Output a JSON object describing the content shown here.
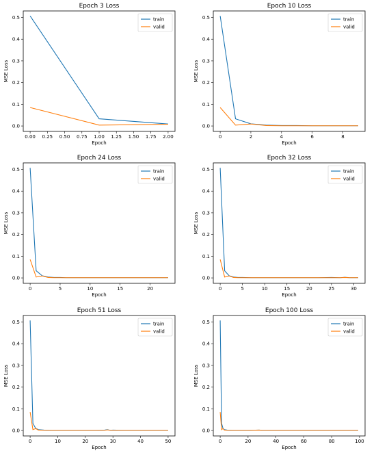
{
  "colors": {
    "train": "#1f77b4",
    "valid": "#ff7f0e"
  },
  "chart_data": [
    {
      "type": "line",
      "title": "Epoch 3 Loss",
      "xlabel": "Epoch",
      "ylabel": "MSE Loss",
      "xlim": [
        -0.1,
        2.1
      ],
      "ylim": [
        -0.025,
        0.53
      ],
      "xticks": [
        0.0,
        0.25,
        0.5,
        0.75,
        1.0,
        1.25,
        1.5,
        1.75,
        2.0
      ],
      "xtick_labels": [
        "0.00",
        "0.25",
        "0.50",
        "0.75",
        "1.00",
        "1.25",
        "1.50",
        "1.75",
        "2.00"
      ],
      "yticks": [
        0.0,
        0.1,
        0.2,
        0.3,
        0.4,
        0.5
      ],
      "ytick_labels": [
        "0.0",
        "0.1",
        "0.2",
        "0.3",
        "0.4",
        "0.5"
      ],
      "legend": "top-right",
      "grid": false,
      "series": [
        {
          "name": "train",
          "x": [
            0,
            1,
            2
          ],
          "y": [
            0.507,
            0.033,
            0.009
          ]
        },
        {
          "name": "valid",
          "x": [
            0,
            1,
            2
          ],
          "y": [
            0.085,
            0.004,
            0.008
          ]
        }
      ]
    },
    {
      "type": "line",
      "title": "Epoch 10 Loss",
      "xlabel": "Epoch",
      "ylabel": "MSE Loss",
      "xlim": [
        -0.45,
        9.45
      ],
      "ylim": [
        -0.025,
        0.53
      ],
      "xticks": [
        0,
        2,
        4,
        6,
        8
      ],
      "xtick_labels": [
        "0",
        "2",
        "4",
        "6",
        "8"
      ],
      "yticks": [
        0.0,
        0.1,
        0.2,
        0.3,
        0.4,
        0.5
      ],
      "ytick_labels": [
        "0.0",
        "0.1",
        "0.2",
        "0.3",
        "0.4",
        "0.5"
      ],
      "legend": "top-right",
      "grid": false,
      "series": [
        {
          "name": "train",
          "x": [
            0,
            1,
            2,
            3,
            4,
            5,
            6,
            7,
            8,
            9
          ],
          "y": [
            0.507,
            0.033,
            0.01,
            0.004,
            0.002,
            0.002,
            0.001,
            0.001,
            0.001,
            0.001
          ]
        },
        {
          "name": "valid",
          "x": [
            0,
            1,
            2,
            3,
            4,
            5,
            6,
            7,
            8,
            9
          ],
          "y": [
            0.085,
            0.004,
            0.009,
            0.002,
            0.001,
            0.001,
            0.001,
            0.001,
            0.001,
            0.001
          ]
        }
      ]
    },
    {
      "type": "line",
      "title": "Epoch 24 Loss",
      "xlabel": "Epoch",
      "ylabel": "MSE Loss",
      "xlim": [
        -1.15,
        24.15
      ],
      "ylim": [
        -0.025,
        0.53
      ],
      "xticks": [
        0,
        5,
        10,
        15,
        20
      ],
      "xtick_labels": [
        "0",
        "5",
        "10",
        "15",
        "20"
      ],
      "yticks": [
        0.0,
        0.1,
        0.2,
        0.3,
        0.4,
        0.5
      ],
      "ytick_labels": [
        "0.0",
        "0.1",
        "0.2",
        "0.3",
        "0.4",
        "0.5"
      ],
      "legend": "top-right",
      "grid": false,
      "series": [
        {
          "name": "train",
          "x": [
            0,
            1,
            2,
            3,
            4,
            5,
            6,
            8,
            10,
            12,
            14,
            16,
            18,
            20,
            22,
            23
          ],
          "y": [
            0.507,
            0.033,
            0.01,
            0.004,
            0.002,
            0.002,
            0.001,
            0.001,
            0.001,
            0.001,
            0.001,
            0.001,
            0.001,
            0.001,
            0.001,
            0.001
          ]
        },
        {
          "name": "valid",
          "x": [
            0,
            1,
            2,
            3,
            4,
            5,
            6,
            8,
            10,
            12,
            14,
            16,
            18,
            20,
            22,
            23
          ],
          "y": [
            0.085,
            0.004,
            0.009,
            0.002,
            0.001,
            0.001,
            0.001,
            0.001,
            0.001,
            0.001,
            0.001,
            0.001,
            0.001,
            0.001,
            0.001,
            0.001
          ]
        }
      ]
    },
    {
      "type": "line",
      "title": "Epoch 32 Loss",
      "xlabel": "Epoch",
      "ylabel": "MSE Loss",
      "xlim": [
        -1.55,
        32.55
      ],
      "ylim": [
        -0.025,
        0.53
      ],
      "xticks": [
        0,
        5,
        10,
        15,
        20,
        25,
        30
      ],
      "xtick_labels": [
        "0",
        "5",
        "10",
        "15",
        "20",
        "25",
        "30"
      ],
      "yticks": [
        0.0,
        0.1,
        0.2,
        0.3,
        0.4,
        0.5
      ],
      "ytick_labels": [
        "0.0",
        "0.1",
        "0.2",
        "0.3",
        "0.4",
        "0.5"
      ],
      "legend": "top-right",
      "grid": false,
      "series": [
        {
          "name": "train",
          "x": [
            0,
            1,
            2,
            3,
            4,
            5,
            7,
            10,
            13,
            16,
            19,
            22,
            25,
            27,
            28,
            29,
            31
          ],
          "y": [
            0.507,
            0.033,
            0.01,
            0.004,
            0.002,
            0.002,
            0.001,
            0.001,
            0.001,
            0.001,
            0.001,
            0.001,
            0.002,
            0.001,
            0.003,
            0.001,
            0.001
          ]
        },
        {
          "name": "valid",
          "x": [
            0,
            1,
            2,
            3,
            4,
            5,
            7,
            10,
            13,
            16,
            19,
            22,
            25,
            27,
            28,
            29,
            31
          ],
          "y": [
            0.085,
            0.004,
            0.009,
            0.002,
            0.001,
            0.001,
            0.001,
            0.001,
            0.001,
            0.001,
            0.001,
            0.001,
            0.001,
            0.001,
            0.002,
            0.001,
            0.001
          ]
        }
      ]
    },
    {
      "type": "line",
      "title": "Epoch 51 Loss",
      "xlabel": "Epoch",
      "ylabel": "MSE Loss",
      "xlim": [
        -2.5,
        52.5
      ],
      "ylim": [
        -0.025,
        0.53
      ],
      "xticks": [
        0,
        10,
        20,
        30,
        40,
        50
      ],
      "xtick_labels": [
        "0",
        "10",
        "20",
        "30",
        "40",
        "50"
      ],
      "yticks": [
        0.0,
        0.1,
        0.2,
        0.3,
        0.4,
        0.5
      ],
      "ytick_labels": [
        "0.0",
        "0.1",
        "0.2",
        "0.3",
        "0.4",
        "0.5"
      ],
      "legend": "top-right",
      "grid": false,
      "series": [
        {
          "name": "train",
          "x": [
            0,
            1,
            2,
            3,
            5,
            8,
            12,
            16,
            20,
            24,
            27,
            28,
            29,
            30,
            34,
            38,
            42,
            46,
            50
          ],
          "y": [
            0.507,
            0.033,
            0.01,
            0.004,
            0.002,
            0.001,
            0.001,
            0.001,
            0.001,
            0.001,
            0.002,
            0.004,
            0.001,
            0.002,
            0.001,
            0.001,
            0.001,
            0.001,
            0.001
          ]
        },
        {
          "name": "valid",
          "x": [
            0,
            1,
            2,
            3,
            5,
            8,
            12,
            16,
            20,
            24,
            27,
            28,
            29,
            30,
            34,
            38,
            42,
            46,
            50
          ],
          "y": [
            0.085,
            0.004,
            0.009,
            0.002,
            0.001,
            0.001,
            0.001,
            0.001,
            0.001,
            0.001,
            0.001,
            0.003,
            0.001,
            0.001,
            0.001,
            0.001,
            0.001,
            0.001,
            0.001
          ]
        }
      ]
    },
    {
      "type": "line",
      "title": "Epoch 100 Loss",
      "xlabel": "Epoch",
      "ylabel": "MSE Loss",
      "xlim": [
        -4.95,
        103.95
      ],
      "ylim": [
        -0.025,
        0.53
      ],
      "xticks": [
        0,
        20,
        40,
        60,
        80,
        100
      ],
      "xtick_labels": [
        "0",
        "20",
        "40",
        "60",
        "80",
        "100"
      ],
      "yticks": [
        0.0,
        0.1,
        0.2,
        0.3,
        0.4,
        0.5
      ],
      "ytick_labels": [
        "0.0",
        "0.1",
        "0.2",
        "0.3",
        "0.4",
        "0.5"
      ],
      "legend": "top-right",
      "grid": false,
      "series": [
        {
          "name": "train",
          "x": [
            0,
            1,
            2,
            3,
            5,
            10,
            20,
            28,
            30,
            40,
            50,
            60,
            70,
            80,
            90,
            99
          ],
          "y": [
            0.507,
            0.033,
            0.01,
            0.004,
            0.002,
            0.001,
            0.001,
            0.002,
            0.001,
            0.001,
            0.001,
            0.001,
            0.001,
            0.001,
            0.001,
            0.001
          ]
        },
        {
          "name": "valid",
          "x": [
            0,
            1,
            2,
            3,
            5,
            10,
            20,
            28,
            30,
            40,
            50,
            60,
            70,
            80,
            90,
            99
          ],
          "y": [
            0.085,
            0.004,
            0.009,
            0.002,
            0.001,
            0.001,
            0.001,
            0.002,
            0.001,
            0.001,
            0.001,
            0.001,
            0.001,
            0.001,
            0.001,
            0.001
          ]
        }
      ]
    }
  ]
}
